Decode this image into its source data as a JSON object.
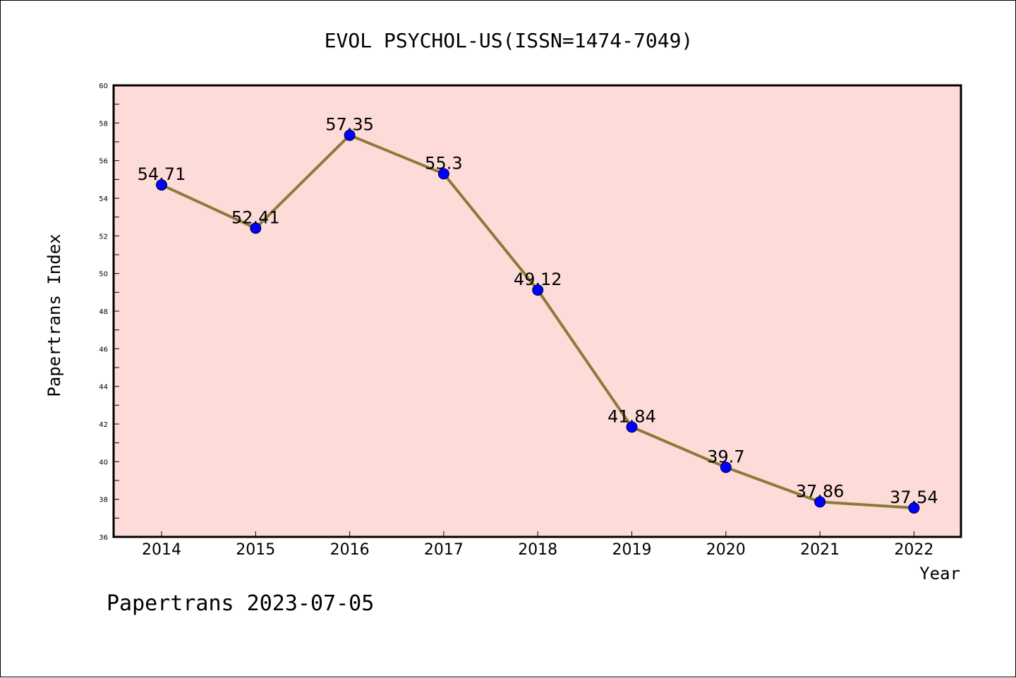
{
  "chart_data": {
    "type": "line",
    "title": "EVOL PSYCHOL-US(ISSN=1474-7049)",
    "xlabel": "Year",
    "ylabel": "Papertrans Index",
    "categories": [
      "2014",
      "2015",
      "2016",
      "2017",
      "2018",
      "2019",
      "2020",
      "2021",
      "2022"
    ],
    "values": [
      54.71,
      52.41,
      57.35,
      55.3,
      49.12,
      41.84,
      39.7,
      37.86,
      37.54
    ],
    "data_labels": [
      "54.71",
      "52.41",
      "57.35",
      "55.3",
      "49.12",
      "41.84",
      "39.7",
      "37.86",
      "37.54"
    ],
    "ylim": [
      36,
      60
    ],
    "yticks": [
      "36",
      "38",
      "40",
      "42",
      "44",
      "46",
      "48",
      "50",
      "52",
      "54",
      "56",
      "58",
      "60"
    ],
    "grid": false,
    "legend": "none",
    "colors": {
      "plot_background": "#fddbd8",
      "line": "#8b7b3a",
      "marker": "#0000ff",
      "axes": "#000000"
    }
  },
  "footer": {
    "watermark": "Papertrans 2023-07-05"
  }
}
